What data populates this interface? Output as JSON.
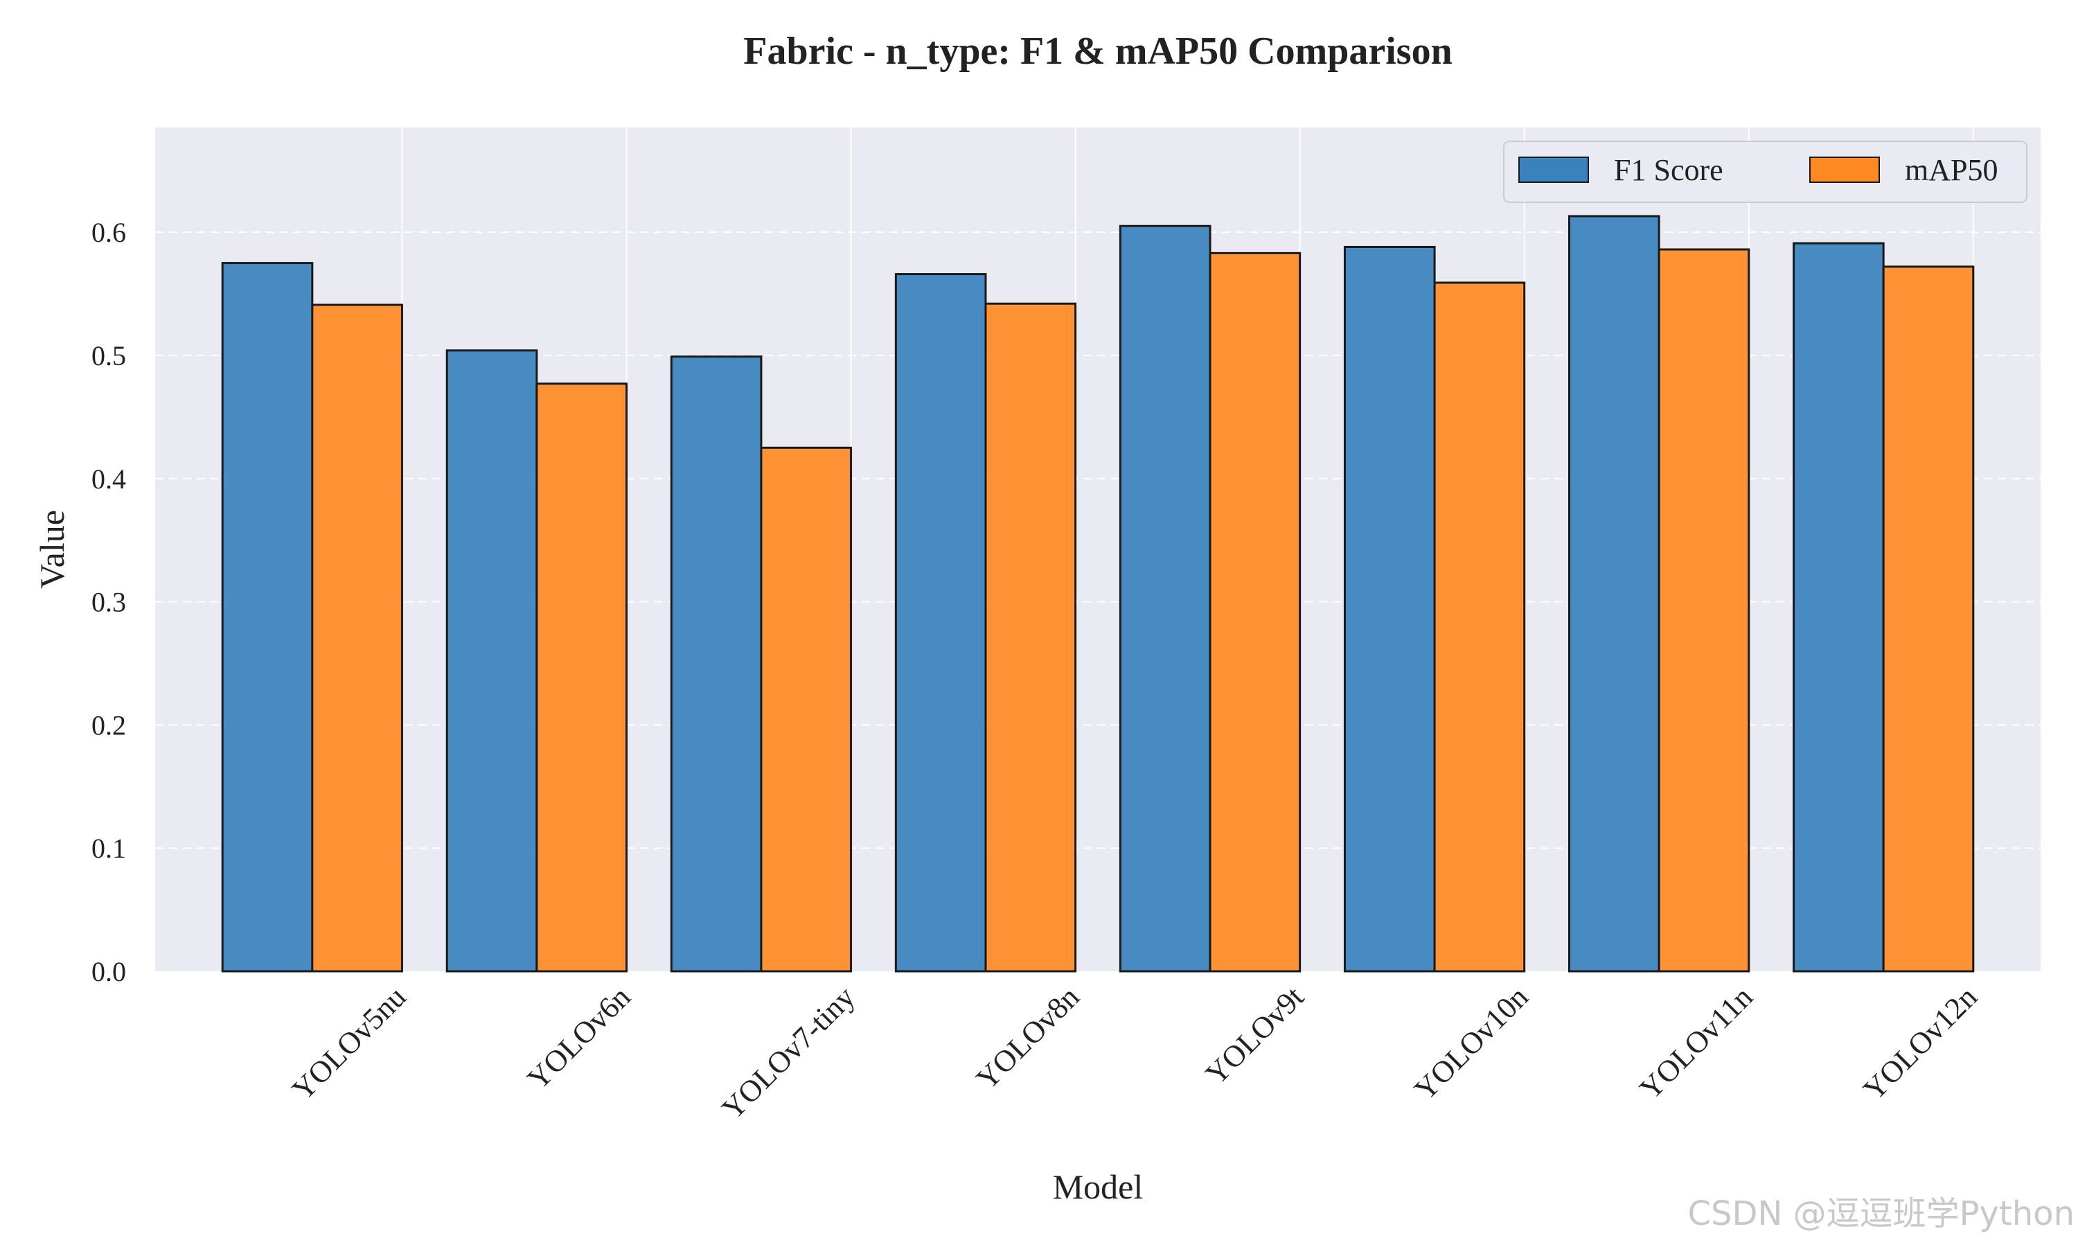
{
  "chart_data": {
    "type": "bar",
    "title": "Fabric - n_type: F1 & mAP50 Comparison",
    "xlabel": "Model",
    "ylabel": "Value",
    "categories": [
      "YOLOv5nu",
      "YOLOv6n",
      "YOLOv7-tiny",
      "YOLOv8n",
      "YOLOv9t",
      "YOLOv10n",
      "YOLOv11n",
      "YOLOv12n"
    ],
    "series": [
      {
        "name": "F1 Score",
        "color": "#3a82be",
        "values": [
          0.575,
          0.504,
          0.499,
          0.566,
          0.605,
          0.588,
          0.613,
          0.591
        ]
      },
      {
        "name": "mAP50",
        "color": "#ff8a24",
        "values": [
          0.541,
          0.477,
          0.425,
          0.542,
          0.583,
          0.559,
          0.586,
          0.572
        ]
      }
    ],
    "ylim": [
      0,
      0.685
    ],
    "yticks": [
      0.0,
      0.1,
      0.2,
      0.3,
      0.4,
      0.5,
      0.6
    ],
    "ytick_labels": [
      "0.0",
      "0.1",
      "0.2",
      "0.3",
      "0.4",
      "0.5",
      "0.6"
    ],
    "grid": "y-dashed, x-solid",
    "legend_position": "top-right",
    "background_color": "#eaeaf2"
  },
  "watermark": "CSDN @逗逗班学Python"
}
